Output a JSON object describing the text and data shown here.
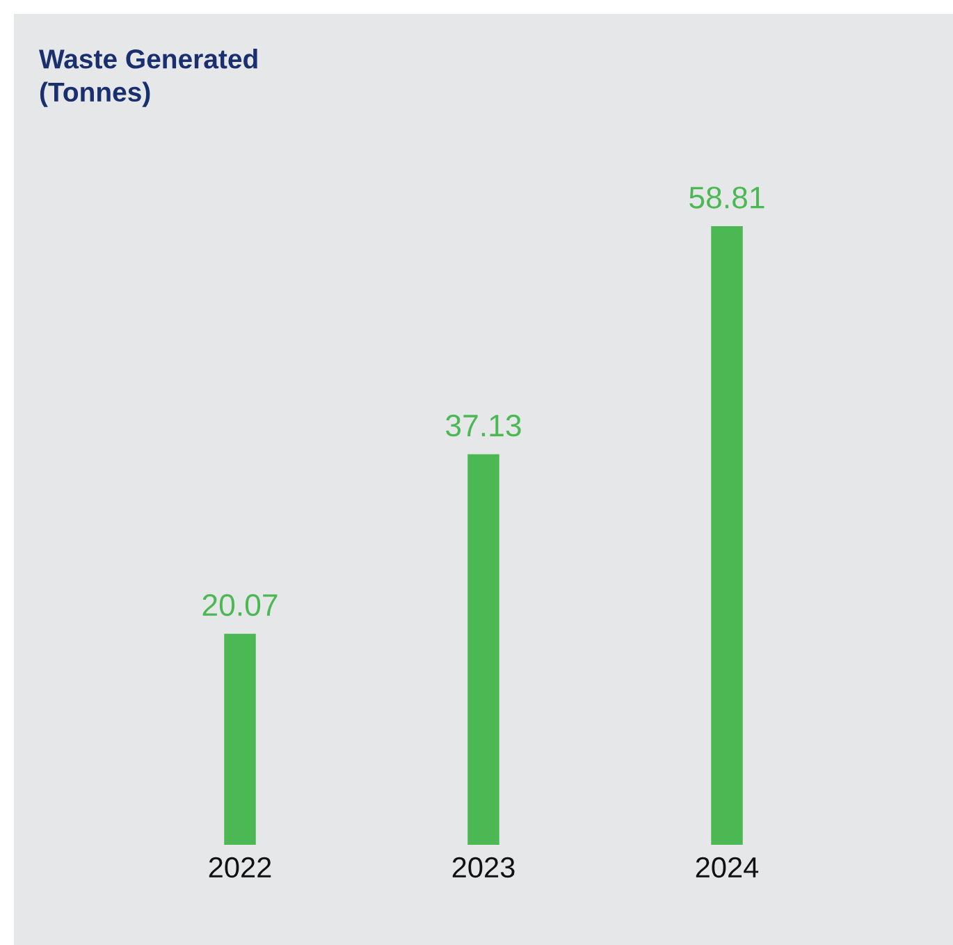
{
  "chart_data": {
    "type": "bar",
    "title": "Waste Generated\n(Tonnes)",
    "categories": [
      "2022",
      "2023",
      "2024"
    ],
    "values": [
      20.07,
      37.13,
      58.81
    ],
    "color": "#4cb853",
    "data_labels": true
  }
}
